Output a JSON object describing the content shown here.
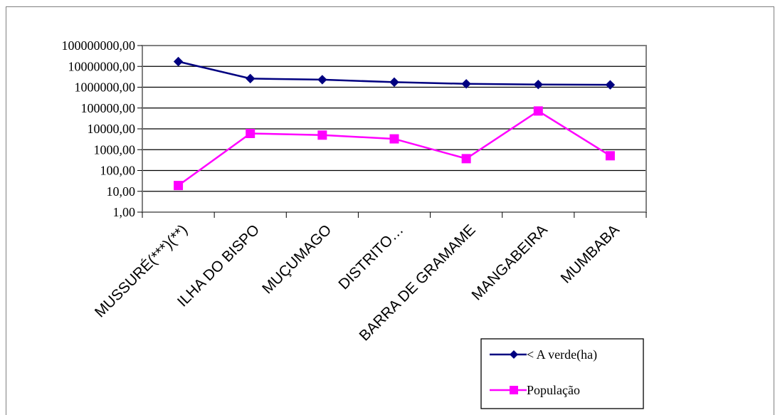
{
  "chart_data": {
    "type": "line",
    "categories": [
      "MUSSURÉ(***)(**)",
      "ILHA DO BISPO",
      "MUÇUMAGO",
      "DISTRITO…",
      "BARRA DE GRAMAME",
      "MANGABEIRA",
      "MUMBABA"
    ],
    "y_scale": "log",
    "ylim": [
      1,
      100000000
    ],
    "y_ticks": [
      "1,00",
      "10,00",
      "100,00",
      "1000,00",
      "10000,00",
      "100000,00",
      "1000000,00",
      "10000000,00",
      "100000000,00"
    ],
    "grid": true,
    "legend_position": "bottom-right",
    "series": [
      {
        "name": "< A verde(ha)",
        "color": "#000080",
        "marker": "diamond",
        "values": [
          17000000,
          2600000,
          2300000,
          1750000,
          1450000,
          1350000,
          1300000
        ]
      },
      {
        "name": "População",
        "color": "#ff00ff",
        "marker": "square",
        "values": [
          19,
          6000,
          5000,
          3300,
          370,
          72000,
          510
        ]
      }
    ]
  }
}
